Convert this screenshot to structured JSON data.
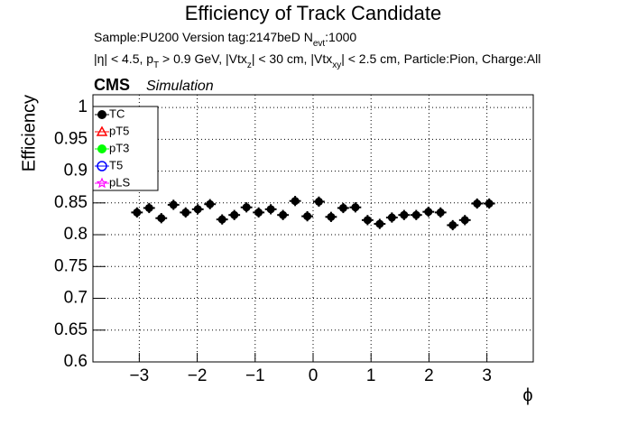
{
  "chart_data": {
    "type": "scatter",
    "title": "Efficiency of Track Candidate",
    "info_lines": [
      [
        {
          "text": "Sample:PU200   Version tag:2147beD  N"
        },
        {
          "text": "evt",
          "sub": true
        },
        {
          "text": ":1000"
        }
      ],
      [
        {
          "text": "|η| < 4.5, p"
        },
        {
          "text": "T",
          "sub": true
        },
        {
          "text": " > 0.9 GeV, |Vtx"
        },
        {
          "text": "z",
          "sub": true
        },
        {
          "text": "| < 30 cm, |Vtx"
        },
        {
          "text": "xy",
          "sub": true
        },
        {
          "text": "| < 2.5 cm, Particle:Pion, Charge:All"
        }
      ]
    ],
    "experiment": "CMS",
    "experiment_note": "Simulation",
    "ylabel": "Efficiency",
    "xlabel": "ϕ",
    "xlim": [
      -3.8,
      3.8
    ],
    "ylim": [
      0.6,
      1.02
    ],
    "xticks": [
      {
        "value": -3,
        "label": "−3"
      },
      {
        "value": -2,
        "label": "−2"
      },
      {
        "value": -1,
        "label": "−1"
      },
      0,
      1,
      2,
      3
    ],
    "yticks": [
      0.6,
      0.65,
      0.7,
      0.75,
      0.8,
      0.85,
      0.9,
      0.95,
      1
    ],
    "grid": true,
    "x": [
      -3.04,
      -2.83,
      -2.62,
      -2.41,
      -2.2,
      -1.99,
      -1.78,
      -1.57,
      -1.36,
      -1.15,
      -0.94,
      -0.73,
      -0.52,
      -0.31,
      -0.1,
      0.1,
      0.31,
      0.52,
      0.73,
      0.94,
      1.15,
      1.36,
      1.57,
      1.78,
      1.99,
      2.2,
      2.41,
      2.62,
      2.83,
      3.04
    ],
    "xerr": 0.1,
    "yerr": 0.008,
    "series": [
      {
        "name": "TC",
        "color": "#000000",
        "marker": "filled-circle",
        "values": [
          0.835,
          0.842,
          0.826,
          0.847,
          0.835,
          0.84,
          0.848,
          0.824,
          0.831,
          0.843,
          0.835,
          0.84,
          0.831,
          0.853,
          0.829,
          0.852,
          0.828,
          0.842,
          0.843,
          0.823,
          0.817,
          0.827,
          0.831,
          0.831,
          0.836,
          0.835,
          0.815,
          0.823,
          0.849,
          0.849
        ]
      },
      {
        "name": "pT5",
        "color": "#ff0000",
        "marker": "open-triangle"
      },
      {
        "name": "pT3",
        "color": "#00ff00",
        "marker": "filled-circle"
      },
      {
        "name": "T5",
        "color": "#0000ff",
        "marker": "open-circle"
      },
      {
        "name": "pLS",
        "color": "#ff00ff",
        "marker": "star"
      }
    ]
  }
}
